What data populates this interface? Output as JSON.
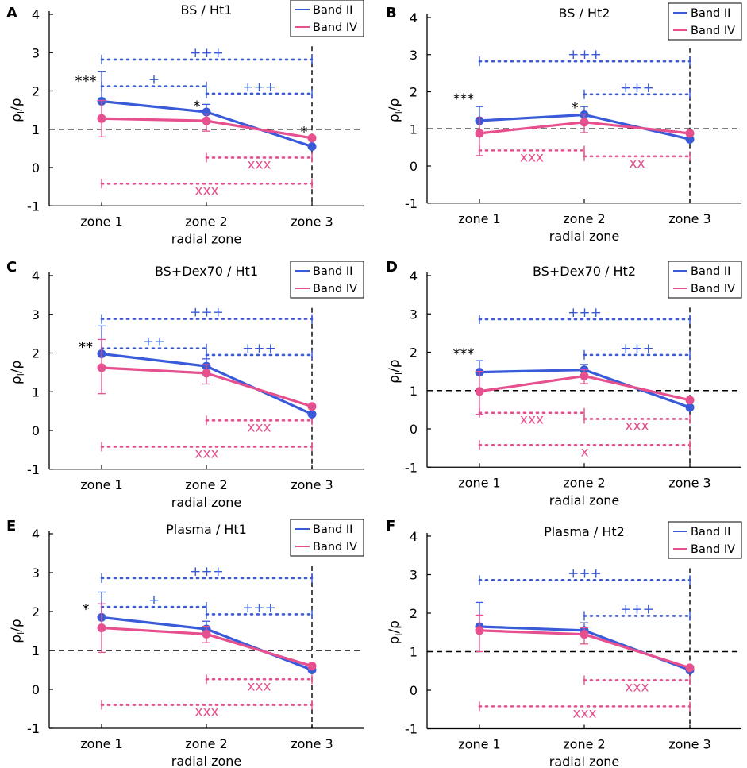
{
  "figure": {
    "colors": {
      "band2": "#3a5bd9",
      "band4": "#e6508e",
      "axis": "#000000"
    }
  },
  "chart_data": [
    {
      "panel_letter": "A",
      "type": "line",
      "title": "BS / Ht1",
      "categories": [
        "zone 1",
        "zone 2",
        "zone 3"
      ],
      "xlabel": "radial zone",
      "ylabel": "ρ",
      "ylabel_subscript": "l",
      "ylabel_denominator": "/ρ",
      "yticks": [
        "4",
        "3",
        "2",
        "1",
        "0",
        "-1"
      ],
      "ylim": [
        -1,
        4
      ],
      "reference_line": 1,
      "series": [
        {
          "name": "Band II",
          "values": [
            1.73,
            1.45,
            0.55
          ],
          "err_upper": [
            2.5,
            1.65,
            0.0
          ]
        },
        {
          "name": "Band IV",
          "values": [
            1.28,
            1.22,
            0.77
          ],
          "err_upper": [
            1.75,
            1.4,
            0.0
          ],
          "err_lower": [
            0.8,
            0.95,
            0.0
          ]
        }
      ],
      "significance_marks": [
        {
          "text": "***",
          "zone": 1,
          "y": 2.3
        },
        {
          "text": "*",
          "zone": 2,
          "y": 1.65
        },
        {
          "text": "*",
          "zone": 3,
          "y": 0.97
        }
      ],
      "brackets_band2": [
        {
          "from": 1,
          "to": 3,
          "y": 2.82,
          "text": "+++"
        },
        {
          "from": 1,
          "to": 2,
          "y": 2.12,
          "text": "+"
        },
        {
          "from": 2,
          "to": 3,
          "y": 1.93,
          "text": "+++"
        }
      ],
      "brackets_band4": [
        {
          "from": 2,
          "to": 3,
          "y": 0.26,
          "text": "xxx"
        },
        {
          "from": 1,
          "to": 3,
          "y": -0.42,
          "text": "xxx"
        }
      ]
    },
    {
      "panel_letter": "B",
      "type": "line",
      "title": "BS / Ht2",
      "categories": [
        "zone 1",
        "zone 2",
        "zone 3"
      ],
      "xlabel": "radial zone",
      "ylabel": "ρ",
      "ylabel_subscript": "l",
      "ylabel_denominator": "/ρ",
      "yticks": [
        "4",
        "3",
        "2",
        "1",
        "0",
        "-1"
      ],
      "ylim": [
        -1,
        4
      ],
      "reference_line": 1,
      "series": [
        {
          "name": "Band II",
          "values": [
            1.22,
            1.38,
            0.72
          ],
          "err_upper": [
            1.6,
            1.6,
            0.0
          ]
        },
        {
          "name": "Band IV",
          "values": [
            0.88,
            1.18,
            0.88
          ],
          "err_upper": [
            1.3,
            1.4,
            0.0
          ],
          "err_lower": [
            0.28,
            0.9,
            0.0
          ]
        }
      ],
      "significance_marks": [
        {
          "text": "***",
          "zone": 1,
          "y": 1.85
        },
        {
          "text": "*",
          "zone": 2,
          "y": 1.62
        }
      ],
      "brackets_band2": [
        {
          "from": 1,
          "to": 3,
          "y": 2.82,
          "text": "+++"
        },
        {
          "from": 2,
          "to": 3,
          "y": 1.93,
          "text": "+++"
        }
      ],
      "brackets_band4": [
        {
          "from": 1,
          "to": 2,
          "y": 0.42,
          "text": "xxx"
        },
        {
          "from": 2,
          "to": 3,
          "y": 0.26,
          "text": "xx"
        }
      ]
    },
    {
      "panel_letter": "C",
      "type": "line",
      "title": "BS+Dex70 / Ht1",
      "categories": [
        "zone 1",
        "zone 2",
        "zone 3"
      ],
      "xlabel": "radial zone",
      "ylabel": "ρ",
      "ylabel_subscript": "l",
      "ylabel_denominator": "/ρ",
      "yticks": [
        "4",
        "3",
        "2",
        "1",
        "0",
        "-1"
      ],
      "ylim": [
        -1,
        4
      ],
      "reference_line": null,
      "series": [
        {
          "name": "Band II",
          "values": [
            1.98,
            1.66,
            0.42
          ],
          "err_upper": [
            2.7,
            1.85,
            0.0
          ]
        },
        {
          "name": "Band IV",
          "values": [
            1.62,
            1.48,
            0.62
          ],
          "err_upper": [
            2.35,
            1.7,
            0.0
          ],
          "err_lower": [
            0.95,
            1.2,
            0.0
          ]
        }
      ],
      "significance_marks": [
        {
          "text": "**",
          "zone": 1,
          "y": 2.2
        }
      ],
      "brackets_band2": [
        {
          "from": 1,
          "to": 3,
          "y": 2.88,
          "text": "+++"
        },
        {
          "from": 1,
          "to": 2,
          "y": 2.12,
          "text": "++"
        },
        {
          "from": 2,
          "to": 3,
          "y": 1.95,
          "text": "+++"
        }
      ],
      "brackets_band4": [
        {
          "from": 2,
          "to": 3,
          "y": 0.26,
          "text": "xxx"
        },
        {
          "from": 1,
          "to": 3,
          "y": -0.42,
          "text": "xxx"
        }
      ]
    },
    {
      "panel_letter": "D",
      "type": "line",
      "title": "BS+Dex70 / Ht2",
      "categories": [
        "zone 1",
        "zone 2",
        "zone 3"
      ],
      "xlabel": "radial zone",
      "ylabel": "ρ",
      "ylabel_subscript": "l",
      "ylabel_denominator": "/ρ",
      "yticks": [
        "4",
        "3",
        "2",
        "1",
        "0",
        "-1"
      ],
      "ylim": [
        -1,
        4
      ],
      "reference_line": 1,
      "series": [
        {
          "name": "Band II",
          "values": [
            1.48,
            1.54,
            0.56
          ],
          "err_upper": [
            1.78,
            1.68,
            0.0
          ]
        },
        {
          "name": "Band IV",
          "values": [
            0.98,
            1.38,
            0.75
          ],
          "err_upper": [
            1.5,
            1.55,
            0.0
          ],
          "err_lower": [
            0.38,
            1.18,
            0.0
          ]
        }
      ],
      "significance_marks": [
        {
          "text": "***",
          "zone": 1,
          "y": 2.0
        }
      ],
      "brackets_band2": [
        {
          "from": 1,
          "to": 3,
          "y": 2.86,
          "text": "+++"
        },
        {
          "from": 2,
          "to": 3,
          "y": 1.93,
          "text": "+++"
        }
      ],
      "brackets_band4": [
        {
          "from": 1,
          "to": 2,
          "y": 0.42,
          "text": "xxx"
        },
        {
          "from": 2,
          "to": 3,
          "y": 0.26,
          "text": "xxx"
        },
        {
          "from": 1,
          "to": 3,
          "y": -0.42,
          "text": "x"
        }
      ]
    },
    {
      "panel_letter": "E",
      "type": "line",
      "title": "Plasma / Ht1",
      "categories": [
        "zone 1",
        "zone 2",
        "zone 3"
      ],
      "xlabel": "radial zone",
      "ylabel": "ρ",
      "ylabel_subscript": "l",
      "ylabel_denominator": "/ρ",
      "yticks": [
        "4",
        "3",
        "2",
        "1",
        "0",
        "-1"
      ],
      "ylim": [
        -1,
        4
      ],
      "reference_line": 1,
      "series": [
        {
          "name": "Band II",
          "values": [
            1.85,
            1.55,
            0.5
          ],
          "err_upper": [
            2.5,
            1.75,
            0.0
          ]
        },
        {
          "name": "Band IV",
          "values": [
            1.58,
            1.42,
            0.6
          ],
          "err_upper": [
            2.2,
            1.62,
            0.0
          ],
          "err_lower": [
            0.95,
            1.2,
            0.0
          ]
        }
      ],
      "significance_marks": [
        {
          "text": "*",
          "zone": 1,
          "y": 2.1
        }
      ],
      "brackets_band2": [
        {
          "from": 1,
          "to": 3,
          "y": 2.86,
          "text": "+++"
        },
        {
          "from": 1,
          "to": 2,
          "y": 2.12,
          "text": "+"
        },
        {
          "from": 2,
          "to": 3,
          "y": 1.93,
          "text": "+++"
        }
      ],
      "brackets_band4": [
        {
          "from": 2,
          "to": 3,
          "y": 0.26,
          "text": "xxx"
        },
        {
          "from": 1,
          "to": 3,
          "y": -0.4,
          "text": "xxx"
        }
      ]
    },
    {
      "panel_letter": "F",
      "type": "line",
      "title": "Plasma / Ht2",
      "categories": [
        "zone 1",
        "zone 2",
        "zone 3"
      ],
      "xlabel": "radial zone",
      "ylabel": "ρ",
      "ylabel_subscript": "l",
      "ylabel_denominator": "/ρ",
      "yticks": [
        "4",
        "3",
        "2",
        "1",
        "0",
        "-1"
      ],
      "ylim": [
        -1,
        4
      ],
      "reference_line": 1,
      "series": [
        {
          "name": "Band II",
          "values": [
            1.65,
            1.55,
            0.52
          ],
          "err_upper": [
            2.28,
            1.75,
            0.0
          ]
        },
        {
          "name": "Band IV",
          "values": [
            1.55,
            1.45,
            0.58
          ],
          "err_upper": [
            1.95,
            1.62,
            0.0
          ],
          "err_lower": [
            1.0,
            1.2,
            0.0
          ]
        }
      ],
      "significance_marks": [],
      "brackets_band2": [
        {
          "from": 1,
          "to": 3,
          "y": 2.86,
          "text": "+++"
        },
        {
          "from": 2,
          "to": 3,
          "y": 1.93,
          "text": "+++"
        }
      ],
      "brackets_band4": [
        {
          "from": 2,
          "to": 3,
          "y": 0.26,
          "text": "xxx"
        },
        {
          "from": 1,
          "to": 3,
          "y": -0.42,
          "text": "xxx"
        }
      ]
    }
  ]
}
